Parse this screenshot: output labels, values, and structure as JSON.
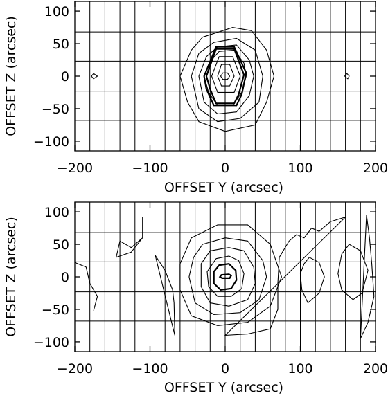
{
  "chart_data": [
    {
      "type": "contour",
      "xlabel": "OFFSET Y (arcsec)",
      "ylabel": "OFFSET Z (arcsec)",
      "xlim": [
        -200,
        200
      ],
      "ylim": [
        -115,
        115
      ],
      "xticks": [
        -200,
        -100,
        0,
        100,
        200
      ],
      "yticks": [
        100,
        50,
        0,
        -50,
        -100
      ],
      "xtick_labels": [
        "−200",
        "−100",
        "0",
        "100",
        "200"
      ],
      "ytick_labels": [
        "100",
        "50",
        "0",
        "−50",
        "−100"
      ],
      "grid": {
        "vertical": [
          -180,
          -160,
          -140,
          -120,
          -100,
          -80,
          -60,
          -40,
          -20,
          0,
          20,
          40,
          60,
          80,
          100,
          120,
          140,
          160,
          180
        ],
        "horizontal": [
          -68,
          -23,
          23,
          68
        ]
      },
      "contours": [
        {
          "level": 1,
          "points": [
            [
              -30,
              60
            ],
            [
              10,
              75
            ],
            [
              35,
              70
            ],
            [
              55,
              40
            ],
            [
              65,
              0
            ],
            [
              55,
              -40
            ],
            [
              40,
              -75
            ],
            [
              0,
              -85
            ],
            [
              -35,
              -70
            ],
            [
              -50,
              -40
            ],
            [
              -60,
              0
            ],
            [
              -45,
              40
            ]
          ]
        },
        {
          "level": 2,
          "points": [
            [
              -15,
              52
            ],
            [
              15,
              58
            ],
            [
              40,
              40
            ],
            [
              50,
              0
            ],
            [
              45,
              -40
            ],
            [
              20,
              -65
            ],
            [
              -10,
              -70
            ],
            [
              -35,
              -50
            ],
            [
              -45,
              0
            ],
            [
              -35,
              35
            ]
          ]
        },
        {
          "level": 3,
          "points": [
            [
              -10,
              45
            ],
            [
              15,
              48
            ],
            [
              32,
              25
            ],
            [
              38,
              0
            ],
            [
              32,
              -30
            ],
            [
              15,
              -55
            ],
            [
              -10,
              -58
            ],
            [
              -28,
              -40
            ],
            [
              -35,
              0
            ],
            [
              -25,
              30
            ]
          ]
        },
        {
          "level": 4,
          "points": [
            [
              -8,
              38
            ],
            [
              12,
              40
            ],
            [
              25,
              20
            ],
            [
              28,
              0
            ],
            [
              22,
              -25
            ],
            [
              10,
              -45
            ],
            [
              -10,
              -45
            ],
            [
              -22,
              -25
            ],
            [
              -28,
              0
            ],
            [
              -18,
              25
            ]
          ]
        },
        {
          "level": 5,
          "points": [
            [
              -12,
              45
            ],
            [
              12,
              45
            ],
            [
              28,
              5
            ],
            [
              22,
              -28
            ],
            [
              15,
              -45
            ],
            [
              -15,
              -45
            ],
            [
              -25,
              -20
            ],
            [
              -28,
              0
            ]
          ]
        },
        {
          "level": 6,
          "points": [
            [
              -12,
              42
            ],
            [
              12,
              42
            ],
            [
              25,
              2
            ],
            [
              18,
              -28
            ],
            [
              12,
              -42
            ],
            [
              -12,
              -42
            ],
            [
              -20,
              -20
            ],
            [
              -25,
              0
            ]
          ]
        },
        {
          "level": 7,
          "points": [
            [
              -8,
              30
            ],
            [
              10,
              30
            ],
            [
              20,
              0
            ],
            [
              12,
              -25
            ],
            [
              -10,
              -25
            ],
            [
              -18,
              0
            ]
          ]
        },
        {
          "level": 8,
          "points": [
            [
              -5,
              18
            ],
            [
              6,
              18
            ],
            [
              12,
              0
            ],
            [
              6,
              -15
            ],
            [
              -5,
              -15
            ],
            [
              -10,
              0
            ]
          ]
        },
        {
          "level": 9,
          "points": [
            [
              -3,
              5
            ],
            [
              3,
              5
            ],
            [
              6,
              0
            ],
            [
              3,
              -5
            ],
            [
              -3,
              -5
            ],
            [
              -6,
              0
            ]
          ]
        },
        {
          "level": 1,
          "points": [
            [
              -175,
              4
            ],
            [
              -170,
              0
            ],
            [
              -175,
              -4
            ],
            [
              -178,
              0
            ]
          ]
        },
        {
          "level": 1,
          "points": [
            [
              162,
              4
            ],
            [
              165,
              0
            ],
            [
              163,
              -4
            ],
            [
              159,
              0
            ]
          ]
        }
      ]
    },
    {
      "type": "contour",
      "xlabel": "OFFSET Y (arcsec)",
      "ylabel": "OFFSET Z (arcsec)",
      "xlim": [
        -200,
        200
      ],
      "ylim": [
        -115,
        115
      ],
      "xticks": [
        -200,
        -100,
        0,
        100,
        200
      ],
      "yticks": [
        100,
        50,
        0,
        -50,
        -100
      ],
      "xtick_labels": [
        "−200",
        "−100",
        "0",
        "100",
        "200"
      ],
      "ytick_labels": [
        "100",
        "50",
        "0",
        "−50",
        "−100"
      ],
      "grid": {
        "vertical": [
          -180,
          -160,
          -140,
          -120,
          -100,
          -80,
          -60,
          -40,
          -20,
          0,
          20,
          40,
          60,
          80,
          100,
          120,
          140,
          160,
          180
        ],
        "horizontal": [
          -68,
          -23,
          23,
          68
        ]
      },
      "contours": [
        {
          "level": 1,
          "points": [
            [
              -45,
              60
            ],
            [
              -10,
              80
            ],
            [
              30,
              80
            ],
            [
              60,
              50
            ],
            [
              75,
              0
            ],
            [
              60,
              -45
            ],
            [
              30,
              -70
            ],
            [
              -10,
              -75
            ],
            [
              -45,
              -60
            ],
            [
              -60,
              -20
            ],
            [
              -60,
              20
            ]
          ]
        },
        {
          "level": 2,
          "points": [
            [
              -30,
              50
            ],
            [
              0,
              60
            ],
            [
              30,
              55
            ],
            [
              50,
              25
            ],
            [
              55,
              0
            ],
            [
              45,
              -35
            ],
            [
              20,
              -55
            ],
            [
              -15,
              -58
            ],
            [
              -40,
              -40
            ],
            [
              -48,
              0
            ],
            [
              -42,
              30
            ]
          ]
        },
        {
          "level": 3,
          "points": [
            [
              -20,
              40
            ],
            [
              5,
              45
            ],
            [
              25,
              40
            ],
            [
              38,
              15
            ],
            [
              40,
              -10
            ],
            [
              30,
              -35
            ],
            [
              5,
              -45
            ],
            [
              -20,
              -40
            ],
            [
              -32,
              -15
            ],
            [
              -32,
              20
            ]
          ]
        },
        {
          "level": 4,
          "points": [
            [
              -12,
              28
            ],
            [
              5,
              32
            ],
            [
              18,
              25
            ],
            [
              25,
              5
            ],
            [
              22,
              -18
            ],
            [
              8,
              -30
            ],
            [
              -10,
              -30
            ],
            [
              -22,
              -15
            ],
            [
              -24,
              8
            ]
          ]
        },
        {
          "level": 5,
          "points": [
            [
              -8,
              18
            ],
            [
              5,
              20
            ],
            [
              14,
              10
            ],
            [
              15,
              -5
            ],
            [
              8,
              -18
            ],
            [
              -6,
              -20
            ],
            [
              -15,
              -10
            ],
            [
              -15,
              8
            ]
          ]
        },
        {
          "level": 6,
          "points": [
            [
              -5,
              3
            ],
            [
              5,
              4
            ],
            [
              8,
              2
            ],
            [
              6,
              -2
            ],
            [
              -4,
              -2
            ],
            [
              -7,
              0
            ]
          ]
        },
        {
          "level": 1,
          "points": [
            [
              -200,
              22
            ],
            [
              -185,
              15
            ],
            [
              -180,
              -10
            ],
            [
              -170,
              -30
            ],
            [
              -175,
              -52
            ]
          ]
        },
        {
          "level": 1,
          "points": [
            [
              -125,
              38
            ],
            [
              -145,
              30
            ],
            [
              -140,
              55
            ],
            [
              -125,
              45
            ],
            [
              -118,
              52
            ],
            [
              -110,
              60
            ]
          ]
        },
        {
          "level": 1,
          "points": [
            [
              -110,
              92
            ],
            [
              -110,
              60
            ]
          ]
        },
        {
          "level": 1,
          "points": [
            [
              -93,
              33
            ],
            [
              -80,
              10
            ],
            [
              -70,
              -20
            ],
            [
              -68,
              -40
            ],
            [
              -67,
              -90
            ]
          ]
        },
        {
          "level": 1,
          "points": [
            [
              0,
              -90
            ],
            [
              30,
              -88
            ],
            [
              60,
              -80
            ],
            [
              70,
              -50
            ],
            [
              70,
              -10
            ],
            [
              72,
              30
            ],
            [
              85,
              55
            ],
            [
              95,
              65
            ],
            [
              105,
              60
            ],
            [
              115,
              75
            ],
            [
              125,
              70
            ],
            [
              140,
              85
            ],
            [
              160,
              92
            ]
          ]
        },
        {
          "level": 1,
          "points": [
            [
              112,
              30
            ],
            [
              125,
              22
            ],
            [
              132,
              0
            ],
            [
              125,
              -25
            ],
            [
              110,
              -40
            ],
            [
              102,
              -20
            ],
            [
              100,
              5
            ],
            [
              105,
              20
            ]
          ]
        },
        {
          "level": 1,
          "points": [
            [
              165,
              50
            ],
            [
              180,
              40
            ],
            [
              190,
              10
            ],
            [
              182,
              -25
            ],
            [
              170,
              -35
            ],
            [
              155,
              -20
            ],
            [
              150,
              5
            ],
            [
              155,
              35
            ]
          ]
        },
        {
          "level": 1,
          "points": [
            [
              188,
              95
            ],
            [
              192,
              60
            ],
            [
              195,
              20
            ],
            [
              198,
              -30
            ],
            [
              190,
              -70
            ],
            [
              180,
              -95
            ]
          ]
        }
      ]
    }
  ]
}
